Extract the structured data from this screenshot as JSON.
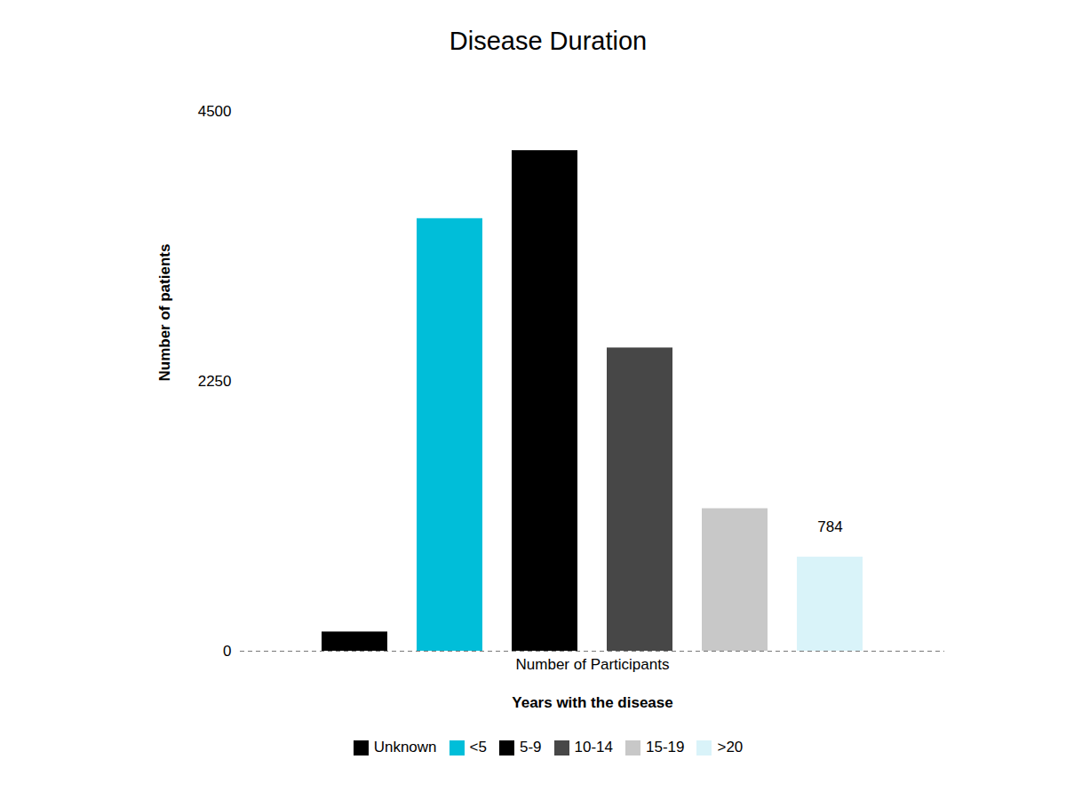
{
  "chart_data": {
    "type": "bar",
    "title": "Disease Duration",
    "xlabel": "Years with the disease",
    "ylabel": "Number of patients",
    "categories": [
      "Number of Participants"
    ],
    "series": [
      {
        "name": "Unknown",
        "color": "#000000",
        "values": [
          160
        ]
      },
      {
        "name": "<5",
        "color": "#00bed9",
        "values": [
          3606
        ]
      },
      {
        "name": "5-9",
        "color": "#000000",
        "values": [
          4173
        ]
      },
      {
        "name": "10-14",
        "color": "#474747",
        "values": [
          2528
        ]
      },
      {
        "name": "15-19",
        "color": "#c8c8c8",
        "values": [
          1188
        ]
      },
      {
        "name": ">20",
        "color": "#d9f3f9",
        "values": [
          784
        ]
      }
    ],
    "ylim": [
      0,
      4500
    ],
    "yticks": [
      0,
      2250,
      4500
    ],
    "grid": false,
    "data_labels": true,
    "legend": "bottom"
  }
}
